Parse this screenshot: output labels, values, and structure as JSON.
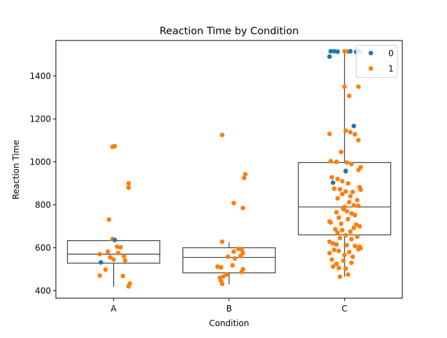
{
  "chart_data": {
    "type": "box-strip",
    "title": "Reaction Time by Condition",
    "xlabel": "Condition",
    "ylabel": "Reaction Time",
    "categories": [
      "A",
      "B",
      "C"
    ],
    "ylim": [
      365,
      1565
    ],
    "yticks": [
      400,
      600,
      800,
      1000,
      1200,
      1400
    ],
    "grid": false,
    "legend": {
      "placement": "top-right",
      "entries": [
        "0",
        "1"
      ]
    },
    "colors": {
      "0": "#1f77b4",
      "1": "#ff7f0e",
      "box": "#3f3f3f"
    },
    "boxes": [
      {
        "category": "A",
        "q1": 528,
        "median": 570,
        "q3": 633,
        "whisker_low": 418,
        "whisker_high": 640
      },
      {
        "category": "B",
        "q1": 483,
        "median": 555,
        "q3": 600,
        "whisker_low": 430,
        "whisker_high": 625
      },
      {
        "category": "C",
        "q1": 660,
        "median": 790,
        "q3": 997,
        "whisker_low": 465,
        "whisker_high": 1515
      }
    ],
    "series": [
      {
        "name": "0",
        "points": [
          {
            "c": "A",
            "dx": -0.11,
            "y": 532
          },
          {
            "c": "A",
            "dx": 0.01,
            "y": 636
          },
          {
            "c": "C",
            "dx": -0.12,
            "y": 1515
          },
          {
            "c": "C",
            "dx": -0.09,
            "y": 1515
          },
          {
            "c": "C",
            "dx": -0.06,
            "y": 1513
          },
          {
            "c": "C",
            "dx": -0.13,
            "y": 1490
          },
          {
            "c": "C",
            "dx": 0.05,
            "y": 1515
          },
          {
            "c": "C",
            "dx": 0.12,
            "y": 1515
          },
          {
            "c": "C",
            "dx": 0.1,
            "y": 1512
          },
          {
            "c": "C",
            "dx": 0.08,
            "y": 1167
          },
          {
            "c": "C",
            "dx": 0.01,
            "y": 958
          },
          {
            "c": "C",
            "dx": -0.1,
            "y": 903
          }
        ]
      },
      {
        "name": "1",
        "points": [
          {
            "c": "A",
            "dx": -0.01,
            "y": 1070
          },
          {
            "c": "A",
            "dx": 0.01,
            "y": 1073
          },
          {
            "c": "A",
            "dx": 0.13,
            "y": 900
          },
          {
            "c": "A",
            "dx": 0.13,
            "y": 880
          },
          {
            "c": "A",
            "dx": -0.04,
            "y": 731
          },
          {
            "c": "A",
            "dx": -0.01,
            "y": 640
          },
          {
            "c": "A",
            "dx": 0.03,
            "y": 605
          },
          {
            "c": "A",
            "dx": 0.06,
            "y": 602
          },
          {
            "c": "A",
            "dx": -0.12,
            "y": 570
          },
          {
            "c": "A",
            "dx": -0.05,
            "y": 582
          },
          {
            "c": "A",
            "dx": 0.04,
            "y": 575
          },
          {
            "c": "A",
            "dx": 0.09,
            "y": 560
          },
          {
            "c": "A",
            "dx": -0.03,
            "y": 555
          },
          {
            "c": "A",
            "dx": 0.0,
            "y": 545
          },
          {
            "c": "A",
            "dx": 0.1,
            "y": 540
          },
          {
            "c": "A",
            "dx": -0.07,
            "y": 498
          },
          {
            "c": "A",
            "dx": -0.12,
            "y": 470
          },
          {
            "c": "A",
            "dx": 0.08,
            "y": 468
          },
          {
            "c": "A",
            "dx": 0.14,
            "y": 433
          },
          {
            "c": "A",
            "dx": 0.13,
            "y": 420
          },
          {
            "c": "B",
            "dx": -0.06,
            "y": 1125
          },
          {
            "c": "B",
            "dx": 0.14,
            "y": 942
          },
          {
            "c": "B",
            "dx": 0.13,
            "y": 925
          },
          {
            "c": "B",
            "dx": 0.04,
            "y": 808
          },
          {
            "c": "B",
            "dx": 0.12,
            "y": 785
          },
          {
            "c": "B",
            "dx": -0.06,
            "y": 628
          },
          {
            "c": "B",
            "dx": 0.08,
            "y": 595
          },
          {
            "c": "B",
            "dx": 0.11,
            "y": 590
          },
          {
            "c": "B",
            "dx": 0.04,
            "y": 582
          },
          {
            "c": "B",
            "dx": 0.12,
            "y": 575
          },
          {
            "c": "B",
            "dx": 0.1,
            "y": 562
          },
          {
            "c": "B",
            "dx": -0.01,
            "y": 558
          },
          {
            "c": "B",
            "dx": 0.05,
            "y": 550
          },
          {
            "c": "B",
            "dx": 0.03,
            "y": 518
          },
          {
            "c": "B",
            "dx": -0.1,
            "y": 512
          },
          {
            "c": "B",
            "dx": -0.07,
            "y": 508
          },
          {
            "c": "B",
            "dx": 0.12,
            "y": 500
          },
          {
            "c": "B",
            "dx": 0.11,
            "y": 487
          },
          {
            "c": "B",
            "dx": -0.02,
            "y": 475
          },
          {
            "c": "B",
            "dx": -0.05,
            "y": 466
          },
          {
            "c": "B",
            "dx": -0.08,
            "y": 460
          },
          {
            "c": "B",
            "dx": -0.07,
            "y": 446
          },
          {
            "c": "B",
            "dx": -0.06,
            "y": 432
          },
          {
            "c": "C",
            "dx": 0.0,
            "y": 1515
          },
          {
            "c": "C",
            "dx": 0.03,
            "y": 1513
          },
          {
            "c": "C",
            "dx": 0.14,
            "y": 1512
          },
          {
            "c": "C",
            "dx": 0.0,
            "y": 1350
          },
          {
            "c": "C",
            "dx": 0.12,
            "y": 1350
          },
          {
            "c": "C",
            "dx": 0.04,
            "y": 1307
          },
          {
            "c": "C",
            "dx": -0.13,
            "y": 1130
          },
          {
            "c": "C",
            "dx": 0.01,
            "y": 1145
          },
          {
            "c": "C",
            "dx": 0.05,
            "y": 1138
          },
          {
            "c": "C",
            "dx": 0.09,
            "y": 1128
          },
          {
            "c": "C",
            "dx": 0.12,
            "y": 1101
          },
          {
            "c": "C",
            "dx": -0.03,
            "y": 1046
          },
          {
            "c": "C",
            "dx": -0.12,
            "y": 1003
          },
          {
            "c": "C",
            "dx": -0.07,
            "y": 1000
          },
          {
            "c": "C",
            "dx": 0.02,
            "y": 997
          },
          {
            "c": "C",
            "dx": 0.06,
            "y": 990
          },
          {
            "c": "C",
            "dx": 0.14,
            "y": 975
          },
          {
            "c": "C",
            "dx": 0.12,
            "y": 962
          },
          {
            "c": "C",
            "dx": 0.01,
            "y": 955
          },
          {
            "c": "C",
            "dx": -0.11,
            "y": 928
          },
          {
            "c": "C",
            "dx": -0.06,
            "y": 920
          },
          {
            "c": "C",
            "dx": -0.02,
            "y": 910
          },
          {
            "c": "C",
            "dx": 0.03,
            "y": 900
          },
          {
            "c": "C",
            "dx": 0.13,
            "y": 882
          },
          {
            "c": "C",
            "dx": 0.14,
            "y": 870
          },
          {
            "c": "C",
            "dx": -0.09,
            "y": 875
          },
          {
            "c": "C",
            "dx": -0.04,
            "y": 872
          },
          {
            "c": "C",
            "dx": 0.01,
            "y": 862
          },
          {
            "c": "C",
            "dx": 0.07,
            "y": 860
          },
          {
            "c": "C",
            "dx": -0.02,
            "y": 850
          },
          {
            "c": "C",
            "dx": 0.05,
            "y": 840
          },
          {
            "c": "C",
            "dx": -0.06,
            "y": 830
          },
          {
            "c": "C",
            "dx": 0.11,
            "y": 822
          },
          {
            "c": "C",
            "dx": 0.04,
            "y": 812
          },
          {
            "c": "C",
            "dx": 0.08,
            "y": 798
          },
          {
            "c": "C",
            "dx": 0.12,
            "y": 795
          },
          {
            "c": "C",
            "dx": 0.0,
            "y": 790
          },
          {
            "c": "C",
            "dx": -0.01,
            "y": 780
          },
          {
            "c": "C",
            "dx": 0.02,
            "y": 770
          },
          {
            "c": "C",
            "dx": -0.07,
            "y": 765
          },
          {
            "c": "C",
            "dx": 0.06,
            "y": 760
          },
          {
            "c": "C",
            "dx": 0.09,
            "y": 752
          },
          {
            "c": "C",
            "dx": -0.05,
            "y": 740
          },
          {
            "c": "C",
            "dx": 0.03,
            "y": 733
          },
          {
            "c": "C",
            "dx": -0.13,
            "y": 722
          },
          {
            "c": "C",
            "dx": -0.12,
            "y": 718
          },
          {
            "c": "C",
            "dx": -0.03,
            "y": 712
          },
          {
            "c": "C",
            "dx": 0.1,
            "y": 708
          },
          {
            "c": "C",
            "dx": 0.13,
            "y": 700
          },
          {
            "c": "C",
            "dx": 0.08,
            "y": 692
          },
          {
            "c": "C",
            "dx": -0.08,
            "y": 686
          },
          {
            "c": "C",
            "dx": -0.02,
            "y": 682
          },
          {
            "c": "C",
            "dx": 0.05,
            "y": 675
          },
          {
            "c": "C",
            "dx": -0.06,
            "y": 670
          },
          {
            "c": "C",
            "dx": 0.01,
            "y": 658
          },
          {
            "c": "C",
            "dx": 0.11,
            "y": 652
          },
          {
            "c": "C",
            "dx": -0.04,
            "y": 645
          },
          {
            "c": "C",
            "dx": 0.06,
            "y": 640
          },
          {
            "c": "C",
            "dx": -0.13,
            "y": 628
          },
          {
            "c": "C",
            "dx": -0.1,
            "y": 620
          },
          {
            "c": "C",
            "dx": -0.07,
            "y": 615
          },
          {
            "c": "C",
            "dx": 0.02,
            "y": 612
          },
          {
            "c": "C",
            "dx": 0.09,
            "y": 608
          },
          {
            "c": "C",
            "dx": 0.13,
            "y": 605
          },
          {
            "c": "C",
            "dx": 0.14,
            "y": 598
          },
          {
            "c": "C",
            "dx": 0.12,
            "y": 593
          },
          {
            "c": "C",
            "dx": -0.09,
            "y": 590
          },
          {
            "c": "C",
            "dx": -0.05,
            "y": 585
          },
          {
            "c": "C",
            "dx": 0.04,
            "y": 580
          },
          {
            "c": "C",
            "dx": -0.13,
            "y": 575
          },
          {
            "c": "C",
            "dx": 0.0,
            "y": 566
          },
          {
            "c": "C",
            "dx": 0.07,
            "y": 558
          },
          {
            "c": "C",
            "dx": -0.11,
            "y": 545
          },
          {
            "c": "C",
            "dx": -0.01,
            "y": 540
          },
          {
            "c": "C",
            "dx": 0.06,
            "y": 530
          },
          {
            "c": "C",
            "dx": -0.07,
            "y": 525
          },
          {
            "c": "C",
            "dx": -0.1,
            "y": 512
          },
          {
            "c": "C",
            "dx": -0.05,
            "y": 506
          },
          {
            "c": "C",
            "dx": 0.01,
            "y": 503
          },
          {
            "c": "C",
            "dx": 0.03,
            "y": 475
          },
          {
            "c": "C",
            "dx": -0.04,
            "y": 465
          }
        ]
      }
    ]
  }
}
